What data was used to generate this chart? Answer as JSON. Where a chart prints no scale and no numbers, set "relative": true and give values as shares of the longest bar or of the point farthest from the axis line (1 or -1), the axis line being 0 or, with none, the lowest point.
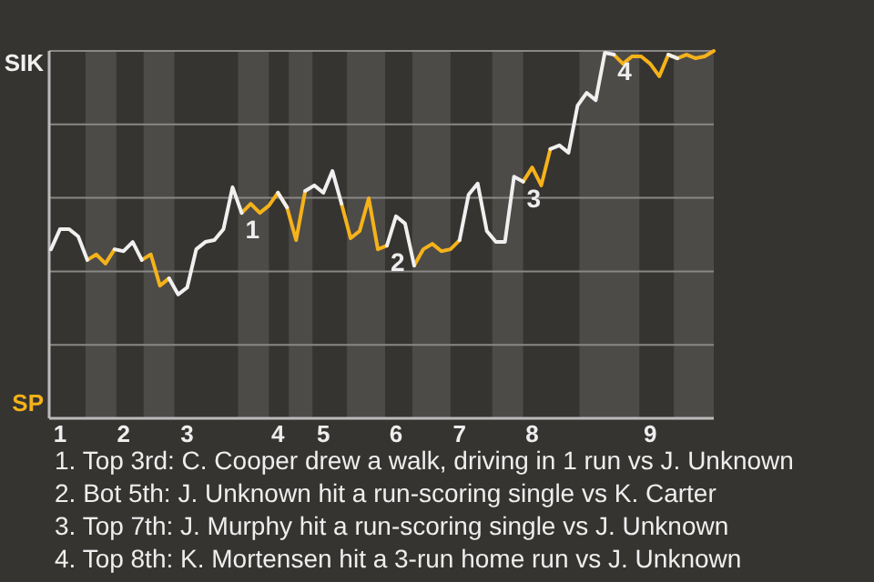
{
  "chart_data": {
    "type": "line",
    "relative": true,
    "categories": [
      null,
      "1",
      null,
      null,
      null,
      null,
      null,
      null,
      "2",
      null,
      null,
      null,
      null,
      null,
      null,
      "3",
      null,
      null,
      null,
      null,
      null,
      null,
      null,
      null,
      null,
      "4",
      null,
      null,
      null,
      null,
      "5",
      null,
      null,
      null,
      null,
      null,
      null,
      null,
      "6",
      null,
      null,
      null,
      null,
      null,
      null,
      "7",
      null,
      null,
      null,
      null,
      null,
      null,
      null,
      "8",
      null,
      null,
      null,
      null,
      null,
      null,
      null,
      null,
      null,
      null,
      null,
      null,
      "9",
      null,
      null,
      null,
      null,
      null,
      null,
      null
    ],
    "legend": "left",
    "series": [
      {
        "name": "SIK",
        "color": "#f0f0f0",
        "values": [
          0.46,
          0.515,
          0.515,
          0.495,
          0.431,
          null,
          null,
          0.46,
          0.455,
          0.48,
          0.431,
          null,
          null,
          0.381,
          0.337,
          0.356,
          0.46,
          0.48,
          0.485,
          0.515,
          0.629,
          0.559,
          null,
          null,
          null,
          0.614,
          0.574,
          null,
          0.619,
          0.634,
          0.614,
          0.673,
          0.584,
          null,
          null,
          null,
          null,
          0.47,
          0.55,
          0.53,
          0.416,
          null,
          null,
          null,
          null,
          0.485,
          0.609,
          0.639,
          0.51,
          0.48,
          0.48,
          0.658,
          0.644,
          null,
          null,
          0.733,
          0.743,
          0.723,
          0.851,
          0.886,
          0.866,
          0.995,
          0.99,
          null,
          null,
          null,
          null,
          null,
          0.99,
          0.98,
          null,
          null,
          null,
          null
        ]
      },
      {
        "name": "SP",
        "color": "#f5b21a",
        "values": [
          null,
          null,
          null,
          null,
          0.431,
          0.446,
          0.421,
          0.46,
          null,
          null,
          0.431,
          0.446,
          0.361,
          0.381,
          null,
          null,
          null,
          null,
          null,
          null,
          null,
          0.559,
          0.584,
          0.559,
          0.579,
          0.614,
          0.574,
          0.485,
          0.619,
          null,
          null,
          null,
          0.584,
          0.49,
          0.51,
          0.599,
          0.46,
          0.47,
          null,
          null,
          0.416,
          0.46,
          0.475,
          0.455,
          0.46,
          0.485,
          null,
          null,
          null,
          null,
          null,
          null,
          0.644,
          0.683,
          0.634,
          0.733,
          null,
          null,
          null,
          null,
          null,
          null,
          0.99,
          0.965,
          0.985,
          0.985,
          0.965,
          0.931,
          0.99,
          0.98,
          0.99,
          0.98,
          0.985,
          1
        ]
      }
    ],
    "grid": "y",
    "marker": "none",
    "line_style": "solid",
    "annotations": [
      {
        "text": "1",
        "y": 0.559
      },
      {
        "text": "2",
        "y": 0.47
      },
      {
        "text": "3",
        "y": 0.644
      },
      {
        "text": "4",
        "y": 0.99
      },
      "1. Top 3rd: C. Cooper drew a walk, driving in 1 run vs J. Unknown",
      "2. Bot 5th: J. Unknown hit a run-scoring single vs K. Carter",
      "3. Top 7th: J. Murphy hit a run-scoring single vs J. Unknown",
      "4. Top 8th: K. Mortensen hit a 3-run home run vs J. Unknown"
    ]
  }
}
